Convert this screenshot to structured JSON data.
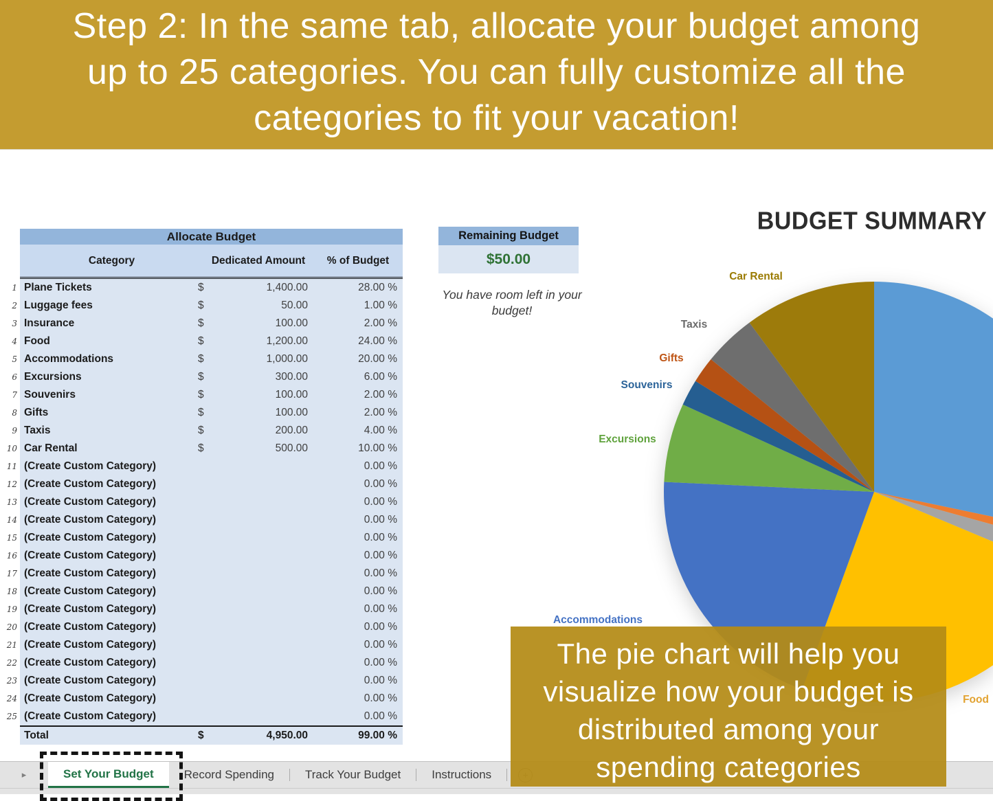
{
  "banner": {
    "text": "Step 2: In the same tab, allocate your budget among\nup to 25 categories. You can fully customize all the\ncategories to fit your vacation!"
  },
  "allocate_table": {
    "title": "Allocate Budget",
    "columns": {
      "category": "Category",
      "amount": "Dedicated Amount",
      "percent": "% of Budget"
    },
    "currency_symbol": "$",
    "rows": [
      {
        "num": "1",
        "category": "Plane Tickets",
        "currency": "$",
        "amount": "1,400.00",
        "percent": "28.00 %"
      },
      {
        "num": "2",
        "category": "Luggage fees",
        "currency": "$",
        "amount": "50.00",
        "percent": "1.00 %"
      },
      {
        "num": "3",
        "category": "Insurance",
        "currency": "$",
        "amount": "100.00",
        "percent": "2.00 %"
      },
      {
        "num": "4",
        "category": "Food",
        "currency": "$",
        "amount": "1,200.00",
        "percent": "24.00 %"
      },
      {
        "num": "5",
        "category": "Accommodations",
        "currency": "$",
        "amount": "1,000.00",
        "percent": "20.00 %"
      },
      {
        "num": "6",
        "category": "Excursions",
        "currency": "$",
        "amount": "300.00",
        "percent": "6.00 %"
      },
      {
        "num": "7",
        "category": "Souvenirs",
        "currency": "$",
        "amount": "100.00",
        "percent": "2.00 %"
      },
      {
        "num": "8",
        "category": "Gifts",
        "currency": "$",
        "amount": "100.00",
        "percent": "2.00 %"
      },
      {
        "num": "9",
        "category": "Taxis",
        "currency": "$",
        "amount": "200.00",
        "percent": "4.00 %"
      },
      {
        "num": "10",
        "category": "Car Rental",
        "currency": "$",
        "amount": "500.00",
        "percent": "10.00 %"
      },
      {
        "num": "11",
        "category": "(Create Custom Category)",
        "currency": "",
        "amount": "",
        "percent": "0.00 %"
      },
      {
        "num": "12",
        "category": "(Create Custom Category)",
        "currency": "",
        "amount": "",
        "percent": "0.00 %"
      },
      {
        "num": "13",
        "category": "(Create Custom Category)",
        "currency": "",
        "amount": "",
        "percent": "0.00 %"
      },
      {
        "num": "14",
        "category": "(Create Custom Category)",
        "currency": "",
        "amount": "",
        "percent": "0.00 %"
      },
      {
        "num": "15",
        "category": "(Create Custom Category)",
        "currency": "",
        "amount": "",
        "percent": "0.00 %"
      },
      {
        "num": "16",
        "category": "(Create Custom Category)",
        "currency": "",
        "amount": "",
        "percent": "0.00 %"
      },
      {
        "num": "17",
        "category": "(Create Custom Category)",
        "currency": "",
        "amount": "",
        "percent": "0.00 %"
      },
      {
        "num": "18",
        "category": "(Create Custom Category)",
        "currency": "",
        "amount": "",
        "percent": "0.00 %"
      },
      {
        "num": "19",
        "category": "(Create Custom Category)",
        "currency": "",
        "amount": "",
        "percent": "0.00 %"
      },
      {
        "num": "20",
        "category": "(Create Custom Category)",
        "currency": "",
        "amount": "",
        "percent": "0.00 %"
      },
      {
        "num": "21",
        "category": "(Create Custom Category)",
        "currency": "",
        "amount": "",
        "percent": "0.00 %"
      },
      {
        "num": "22",
        "category": "(Create Custom Category)",
        "currency": "",
        "amount": "",
        "percent": "0.00 %"
      },
      {
        "num": "23",
        "category": "(Create Custom Category)",
        "currency": "",
        "amount": "",
        "percent": "0.00 %"
      },
      {
        "num": "24",
        "category": "(Create Custom Category)",
        "currency": "",
        "amount": "",
        "percent": "0.00 %"
      },
      {
        "num": "25",
        "category": "(Create Custom Category)",
        "currency": "",
        "amount": "",
        "percent": "0.00 %"
      }
    ],
    "total": {
      "label": "Total",
      "currency": "$",
      "amount": "4,950.00",
      "percent": "99.00 %"
    }
  },
  "remaining": {
    "title": "Remaining Budget",
    "value": "$50.00",
    "value_color": "#2F7235",
    "note": "You have room left in your budget!"
  },
  "chart_data": {
    "type": "pie",
    "title": "BUDGET SUMMARY",
    "unit": "percent of total budget",
    "start_angle_deg": -90,
    "direction": "clockwise",
    "legend": "none",
    "series": [
      {
        "name": "Plane Tickets",
        "value": 28,
        "color": "#5B9BD5"
      },
      {
        "name": "Luggage fees",
        "value": 1,
        "color": "#ED7D31"
      },
      {
        "name": "Insurance",
        "value": 2,
        "color": "#A5A5A5"
      },
      {
        "name": "Food",
        "value": 24,
        "color": "#FFC000"
      },
      {
        "name": "Accommodations",
        "value": 20,
        "color": "#4472C4"
      },
      {
        "name": "Excursions",
        "value": 6,
        "color": "#70AD47"
      },
      {
        "name": "Souvenirs",
        "value": 2,
        "color": "#255E91"
      },
      {
        "name": "Gifts",
        "value": 2,
        "color": "#B55114"
      },
      {
        "name": "Taxis",
        "value": 4,
        "color": "#6E6E6E"
      },
      {
        "name": "Car Rental",
        "value": 10,
        "color": "#9D7B0B"
      }
    ],
    "visible_labels": [
      {
        "text": "Car Rental",
        "color": "#9A7A00"
      },
      {
        "text": "Taxis",
        "color": "#6A6A6A"
      },
      {
        "text": "Gifts",
        "color": "#BE5414"
      },
      {
        "text": "Souvenirs",
        "color": "#2B6399"
      },
      {
        "text": "Excursions",
        "color": "#5FA23C"
      },
      {
        "text": "Accommodations",
        "color": "#4472C4"
      },
      {
        "text": "Food",
        "color": "#E2A230"
      }
    ]
  },
  "overlay": {
    "text": "The pie chart will help you\nvisualize how your budget is\ndistributed among your\nspending categories"
  },
  "tabs": {
    "active": "Set Your Budget",
    "items": [
      "Set Your Budget",
      "Record Spending",
      "Track Your Budget",
      "Instructions"
    ]
  },
  "icons": {
    "tab_nav_arrow": "▸",
    "scroll_left": "◀",
    "new_sheet": "+"
  }
}
